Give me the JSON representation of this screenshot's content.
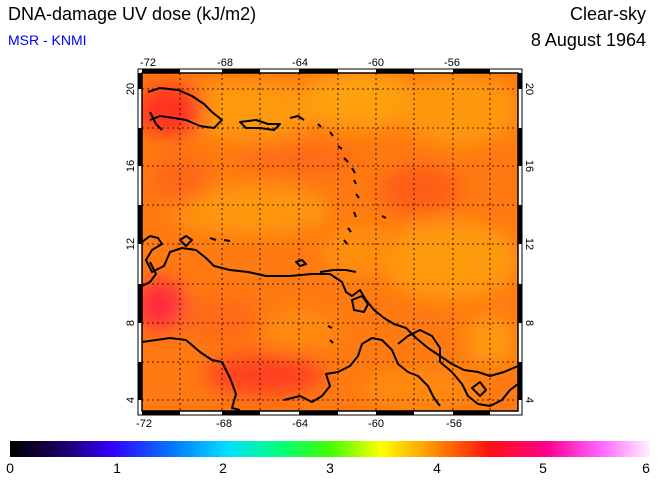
{
  "header": {
    "title": "DNA-damage UV dose (kJ/m2)",
    "source": "MSR - KNMI",
    "condition": "Clear-sky",
    "date": "8 August 1964"
  },
  "map": {
    "region": "Caribbean",
    "lon_ticks": [
      "-72",
      "-68",
      "-64",
      "-60",
      "-56"
    ],
    "lat_ticks": [
      "20",
      "16",
      "12",
      "8",
      "4"
    ],
    "lon_range": [
      -72,
      -52
    ],
    "lat_range": [
      3.5,
      20.5
    ],
    "field_color": "#ff7a10"
  },
  "colorbar": {
    "labels": [
      "0",
      "1",
      "2",
      "3",
      "4",
      "5",
      "6"
    ],
    "range": [
      0,
      6
    ]
  }
}
